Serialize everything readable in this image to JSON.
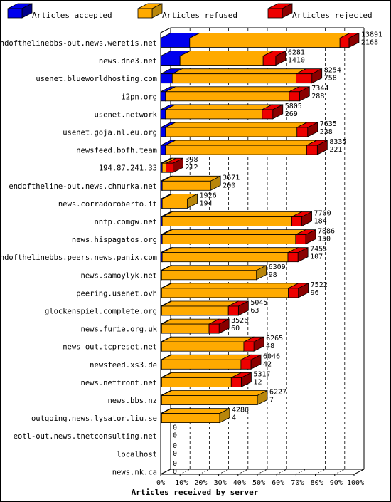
{
  "chart_data": {
    "type": "bar",
    "orientation": "horizontal",
    "stacked": true,
    "style": "3d",
    "xlabel": "Articles received by server",
    "xlim": [
      0,
      100
    ],
    "x_unit": "%",
    "x_ticks": [
      "0%",
      "10%",
      "20%",
      "30%",
      "40%",
      "50%",
      "60%",
      "70%",
      "80%",
      "90%",
      "100%"
    ],
    "grid": "vertical dashed",
    "legend_position": "top",
    "colors": {
      "accepted": "#0000ee",
      "refused": "#ffaa00",
      "rejected": "#ee0000",
      "accepted_side": "#00008b",
      "refused_side": "#b8860b",
      "rejected_side": "#8b0000"
    },
    "series": [
      {
        "key": "accepted",
        "name": "Articles accepted"
      },
      {
        "key": "refused",
        "name": "Articles refused"
      },
      {
        "key": "rejected",
        "name": "Articles rejected"
      }
    ],
    "rows": [
      {
        "server": "endofthelinebbs-out.news.weretis.net",
        "accepted": 15,
        "refused": 77.7,
        "rejected": 4.7,
        "total": "13891",
        "top": "2168"
      },
      {
        "server": "news.dne3.net",
        "accepted": 10,
        "refused": 43,
        "rejected": 6.5,
        "total": "6281",
        "top": "1410"
      },
      {
        "server": "usenet.blueworldhosting.com",
        "accepted": 6,
        "refused": 64,
        "rejected": 8.2,
        "total": "8254",
        "top": "758"
      },
      {
        "server": "i2pn.org",
        "accepted": 2.5,
        "refused": 64,
        "rejected": 5.3,
        "total": "7344",
        "top": "288"
      },
      {
        "server": "usenet.network",
        "accepted": 2.5,
        "refused": 50,
        "rejected": 5.5,
        "total": "5805",
        "top": "269"
      },
      {
        "server": "usenet.goja.nl.eu.org",
        "accepted": 2.5,
        "refused": 68,
        "rejected": 5.5,
        "total": "7635",
        "top": "238"
      },
      {
        "server": "newsfeed.bofh.team",
        "accepted": 2.5,
        "refused": 73,
        "rejected": 5.5,
        "total": "8335",
        "top": "221"
      },
      {
        "server": "194.87.241.33",
        "accepted": 0.8,
        "refused": 2,
        "rejected": 3.6,
        "total": "398",
        "top": "212"
      },
      {
        "server": "endoftheline-out.news.chmurka.net",
        "accepted": 0.8,
        "refused": 25,
        "rejected": 0,
        "total": "3671",
        "top": "200"
      },
      {
        "server": "news.corradoroberto.it",
        "accepted": 0.8,
        "refused": 13,
        "rejected": 0,
        "total": "1926",
        "top": "194"
      },
      {
        "server": "nntp.comgw.net",
        "accepted": 0.8,
        "refused": 67,
        "rejected": 5.2,
        "total": "7700",
        "top": "184"
      },
      {
        "server": "news.hispagatos.org",
        "accepted": 0.8,
        "refused": 69,
        "rejected": 5.2,
        "total": "7886",
        "top": "150"
      },
      {
        "server": "endofthelinebbs.peers.news.panix.com",
        "accepted": 0.8,
        "refused": 65,
        "rejected": 5.2,
        "total": "7455",
        "top": "107"
      },
      {
        "server": "news.samoylyk.net",
        "accepted": 0.5,
        "refused": 49,
        "rejected": 0,
        "total": "6309",
        "top": "98"
      },
      {
        "server": "peering.usenet.ovh",
        "accepted": 0.5,
        "refused": 65.5,
        "rejected": 5.2,
        "total": "7522",
        "top": "96"
      },
      {
        "server": "glockenspiel.complete.org",
        "accepted": 0.5,
        "refused": 34.5,
        "rejected": 5.2,
        "total": "5045",
        "top": "63"
      },
      {
        "server": "news.furie.org.uk",
        "accepted": 0.5,
        "refused": 24.5,
        "rejected": 5.2,
        "total": "3526",
        "top": "60"
      },
      {
        "server": "news-out.tcpreset.net",
        "accepted": 0.5,
        "refused": 42.5,
        "rejected": 5.2,
        "total": "6265",
        "top": "48"
      },
      {
        "server": "newsfeed.xs3.de",
        "accepted": 0.5,
        "refused": 41,
        "rejected": 5.2,
        "total": "6046",
        "top": "42"
      },
      {
        "server": "news.netfront.net",
        "accepted": 0.5,
        "refused": 36,
        "rejected": 5.2,
        "total": "5317",
        "top": "12"
      },
      {
        "server": "news.bbs.nz",
        "accepted": 0.5,
        "refused": 49.5,
        "rejected": 0,
        "total": "6227",
        "top": "7"
      },
      {
        "server": "outgoing.news.lysator.liu.se",
        "accepted": 0.5,
        "refused": 30,
        "rejected": 0,
        "total": "4286",
        "top": "4"
      },
      {
        "server": "eotl-out.news.tnetconsulting.net",
        "accepted": 0,
        "refused": 0,
        "rejected": 0,
        "total": "0",
        "top": "0"
      },
      {
        "server": "localhost",
        "accepted": 0,
        "refused": 0,
        "rejected": 0,
        "total": "0",
        "top": "0"
      },
      {
        "server": "news.nk.ca",
        "accepted": 0,
        "refused": 0,
        "rejected": 0,
        "total": "0",
        "top": "0"
      }
    ]
  }
}
